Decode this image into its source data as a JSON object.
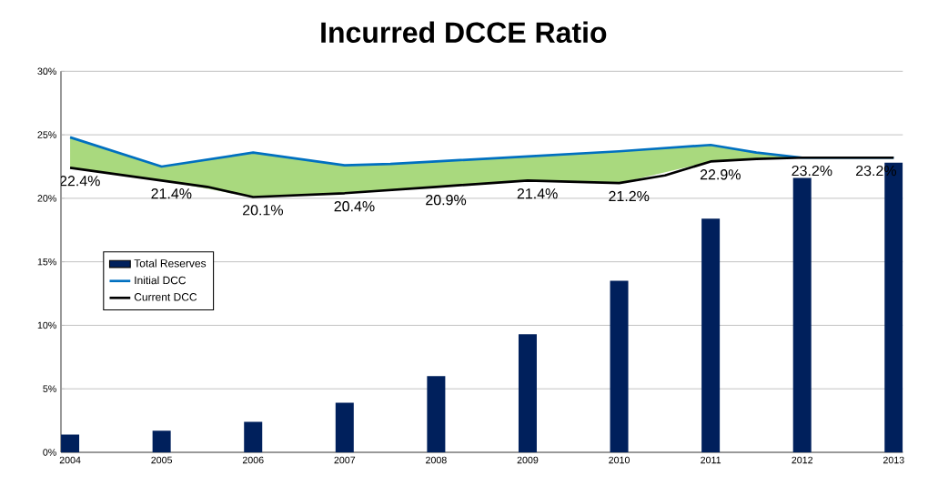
{
  "chart_data": {
    "type": "bar",
    "title": "Incurred DCCE Ratio",
    "xlim": [
      2003.9,
      2013.1
    ],
    "xticks": [
      2004,
      2005,
      2006,
      2007,
      2008,
      2009,
      2010,
      2011,
      2012,
      2013
    ],
    "ylim": [
      0,
      30
    ],
    "yticks": [
      {
        "value": 0,
        "label": "0%"
      },
      {
        "value": 5,
        "label": "5%"
      },
      {
        "value": 10,
        "label": "10%"
      },
      {
        "value": 15,
        "label": "15%"
      },
      {
        "value": 20,
        "label": "20%"
      },
      {
        "value": 25,
        "label": "25%"
      },
      {
        "value": 30,
        "label": "30%"
      }
    ],
    "grid": "y",
    "legend": "left",
    "series": [
      {
        "name": "Total Reserves",
        "color": "#00205c",
        "x": [
          2004,
          2005,
          2006,
          2007,
          2008,
          2009,
          2010,
          2011,
          2012,
          2013
        ],
        "values": [
          1.4,
          1.7,
          2.4,
          3.9,
          6.0,
          9.3,
          13.5,
          18.4,
          21.6,
          22.8
        ]
      },
      {
        "name": "Initial DCC",
        "type": "line",
        "color": "#0070c0",
        "x": [
          2004,
          2005,
          2006,
          2006.5,
          2007,
          2007.5,
          2008,
          2009,
          2010,
          2011,
          2011.5,
          2012,
          2013
        ],
        "values": [
          24.8,
          22.5,
          23.6,
          23.1,
          22.6,
          22.7,
          22.9,
          23.3,
          23.7,
          24.2,
          23.6,
          23.2,
          23.2
        ],
        "lower": [
          22.4,
          21.4,
          20.1,
          20.25,
          20.4,
          20.6,
          20.9,
          21.4,
          21.2,
          22.9,
          23.1,
          23.2,
          23.2
        ],
        "upper": [
          24.8,
          22.5,
          23.6,
          23.1,
          22.6,
          22.7,
          22.9,
          23.3,
          23.7,
          24.2,
          23.6,
          23.2,
          23.2
        ]
      },
      {
        "name": "Current DCC",
        "type": "line",
        "color": "#000000",
        "x": [
          2004,
          2004.5,
          2005,
          2005.5,
          2006,
          2007,
          2008,
          2009,
          2010,
          2010.5,
          2011,
          2011.5,
          2012,
          2013
        ],
        "values": [
          22.4,
          21.9,
          21.4,
          20.9,
          20.1,
          20.4,
          20.9,
          21.4,
          21.2,
          21.8,
          22.9,
          23.1,
          23.2,
          23.2
        ],
        "value_labels": [
          "22.4%",
          null,
          "21.4%",
          null,
          "20.1%",
          "20.4%",
          "20.9%",
          "21.4%",
          "21.2%",
          null,
          "22.9%",
          null,
          "23.2%",
          "23.2%"
        ]
      }
    ]
  }
}
